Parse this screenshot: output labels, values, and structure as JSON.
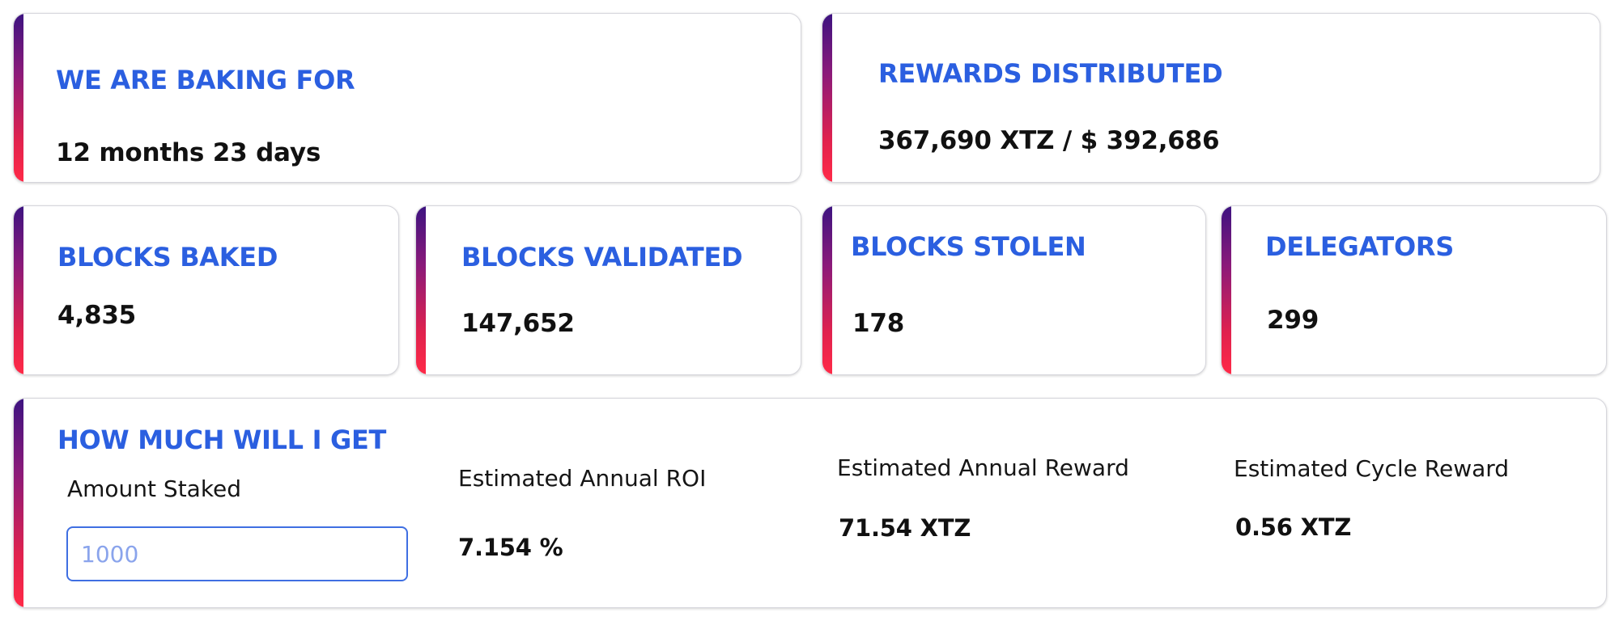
{
  "baking_period": {
    "label": "WE ARE BAKING FOR",
    "value": "12 months 23 days"
  },
  "rewards_distributed": {
    "label": "REWARDS DISTRIBUTED",
    "value": "367,690 XTZ / $ 392,686"
  },
  "blocks_baked": {
    "label": "BLOCKS BAKED",
    "value": "4,835"
  },
  "blocks_validated": {
    "label": "BLOCKS VALIDATED",
    "value": "147,652"
  },
  "blocks_stolen": {
    "label": "BLOCKS STOLEN",
    "value": "178"
  },
  "delegators": {
    "label": "DELEGATORS",
    "value": "299"
  },
  "calculator": {
    "title": "HOW MUCH WILL I GET",
    "amount_label": "Amount Staked",
    "amount_placeholder": "1000",
    "roi_label": "Estimated Annual ROI",
    "roi_value": "7.154 %",
    "annual_reward_label": "Estimated Annual Reward",
    "annual_reward_value": "71.54 XTZ",
    "cycle_reward_label": "Estimated Cycle Reward",
    "cycle_reward_value": "0.56 XTZ"
  },
  "colors": {
    "label_blue": "#2b5fe0",
    "accent_top": "#3d1380",
    "accent_bottom": "#ff2a47",
    "value_text": "#111111"
  }
}
